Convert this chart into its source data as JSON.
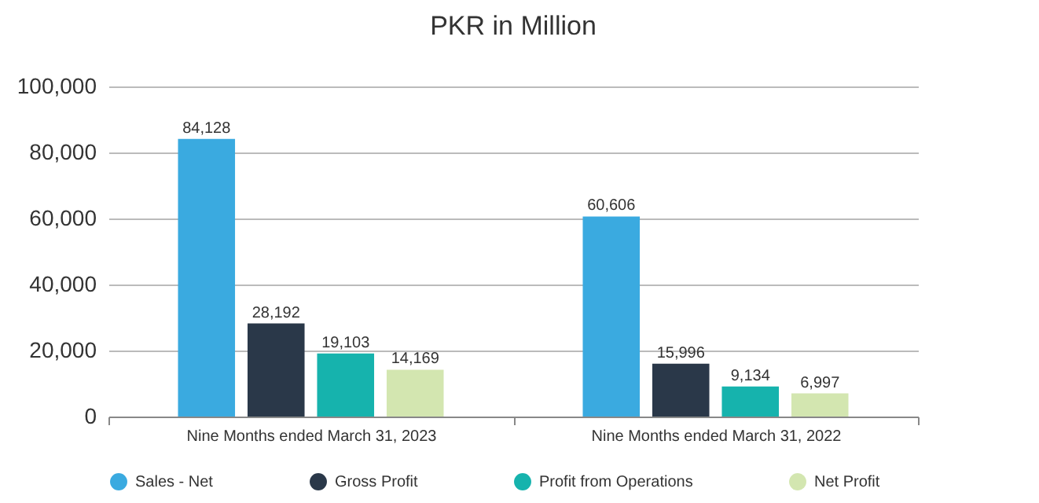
{
  "chart_data": {
    "type": "bar",
    "title": "PKR in Million",
    "categories": [
      "Nine Months ended March 31, 2023",
      "Nine Months ended March 31, 2022"
    ],
    "series": [
      {
        "name": "Sales - Net",
        "color": "#3aaae0",
        "values": [
          84128,
          60606
        ],
        "value_labels": [
          "84,128",
          "60,606"
        ]
      },
      {
        "name": "Gross Profit",
        "color": "#2a3849",
        "values": [
          28192,
          15996
        ],
        "value_labels": [
          "28,192",
          "15,996"
        ]
      },
      {
        "name": "Profit from Operations",
        "color": "#16b3ad",
        "values": [
          19103,
          9134
        ],
        "value_labels": [
          "19,103",
          "9,134"
        ]
      },
      {
        "name": "Net Profit",
        "color": "#d3e6b0",
        "values": [
          14169,
          6997
        ],
        "value_labels": [
          "14,169",
          "6,997"
        ]
      }
    ],
    "ylim": [
      0,
      100000
    ],
    "yticks": [
      0,
      {
        "value": 20000,
        "label": "20,000"
      },
      {
        "value": 40000,
        "label": "40,000"
      },
      {
        "value": 60000,
        "label": "60,000"
      },
      {
        "value": 80000,
        "label": "80,000"
      },
      {
        "value": 100000,
        "label": "100,000"
      }
    ],
    "grid": "y",
    "legend": "bottom"
  }
}
